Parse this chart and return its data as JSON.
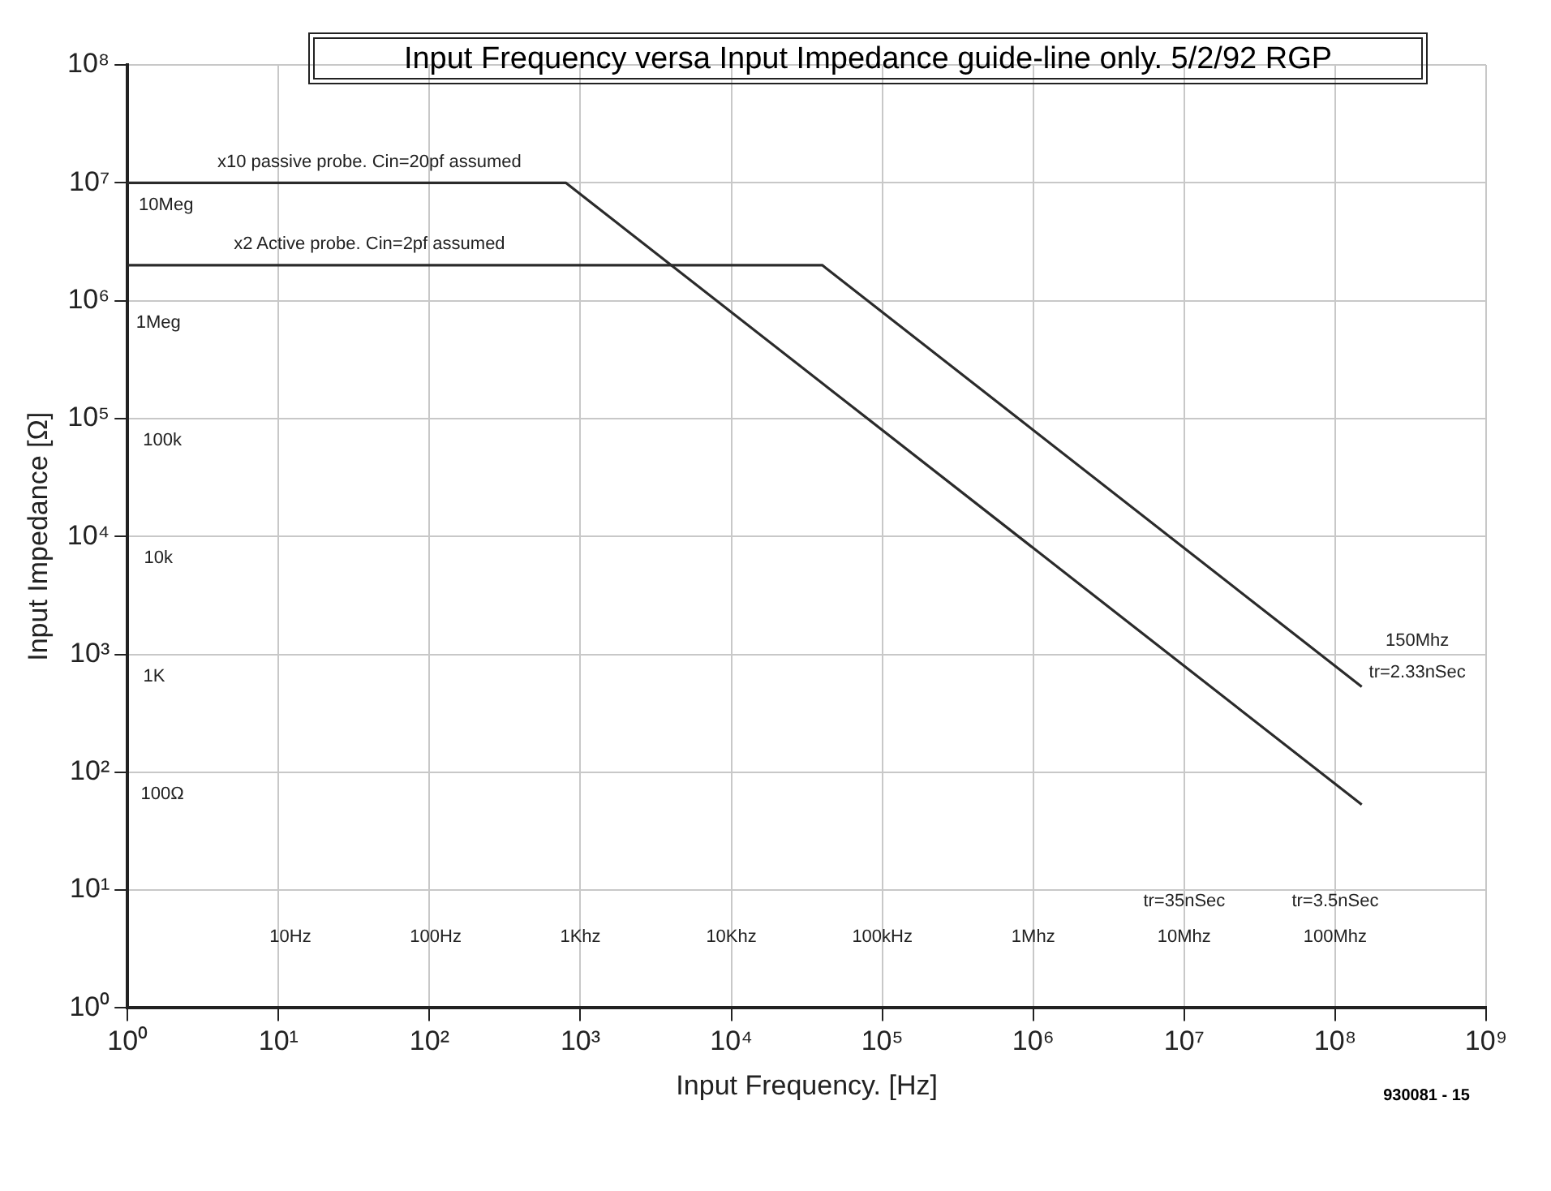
{
  "chart_data": {
    "type": "line",
    "title": "Input Frequency versa Input Impedance guide-line only. 5/2/92 RGP",
    "xlabel": "Input Frequency. [Hz]",
    "ylabel": "Input Impedance [Ω]",
    "log": "xy",
    "grid": true,
    "legend": false,
    "marker": "none",
    "line_style": "solid",
    "xlim": [
      1,
      1000000000
    ],
    "ylim": [
      1,
      100000000
    ],
    "xticks": [
      {
        "value": 1,
        "label": "10⁰"
      },
      {
        "value": 10,
        "label": "10¹"
      },
      {
        "value": 100,
        "label": "10²"
      },
      {
        "value": 1000,
        "label": "10³"
      },
      {
        "value": 10000,
        "label": "10⁴"
      },
      {
        "value": 100000,
        "label": "10⁵"
      },
      {
        "value": 1000000,
        "label": "10⁶"
      },
      {
        "value": 10000000,
        "label": "10⁷"
      },
      {
        "value": 100000000,
        "label": "10⁸"
      },
      {
        "value": 1000000000,
        "label": "10⁹"
      }
    ],
    "yticks": [
      {
        "value": 1,
        "label": "10⁰"
      },
      {
        "value": 10,
        "label": "10¹"
      },
      {
        "value": 100,
        "label": "10²"
      },
      {
        "value": 1000,
        "label": "10³"
      },
      {
        "value": 10000,
        "label": "10⁴"
      },
      {
        "value": 100000,
        "label": "10⁵"
      },
      {
        "value": 1000000,
        "label": "10⁶"
      },
      {
        "value": 10000000,
        "label": "10⁷"
      },
      {
        "value": 100000000,
        "label": "10⁸"
      }
    ],
    "series": [
      {
        "color": "#2b2b2b",
        "x": [
          1,
          800,
          150000000
        ],
        "values": [
          10000000,
          10000000,
          53
        ]
      },
      {
        "color": "#2b2b2b",
        "x": [
          1,
          40000,
          150000000
        ],
        "values": [
          2000000,
          2000000,
          530
        ]
      }
    ],
    "annotations": [
      "x10 passive probe. Cin=20pf assumed",
      "10Meg",
      "x2 Active probe. Cin=2pf assumed",
      "1Meg",
      "100k",
      "10k",
      "1K",
      "100Ω",
      "150Mhz",
      "tr=2.33nSec",
      "10Hz",
      "100Hz",
      "1Khz",
      "10Khz",
      "100kHz",
      "1Mhz",
      "tr=35nSec",
      "10Mhz",
      "tr=3.5nSec",
      "100Mhz",
      "930081 - 15"
    ]
  }
}
